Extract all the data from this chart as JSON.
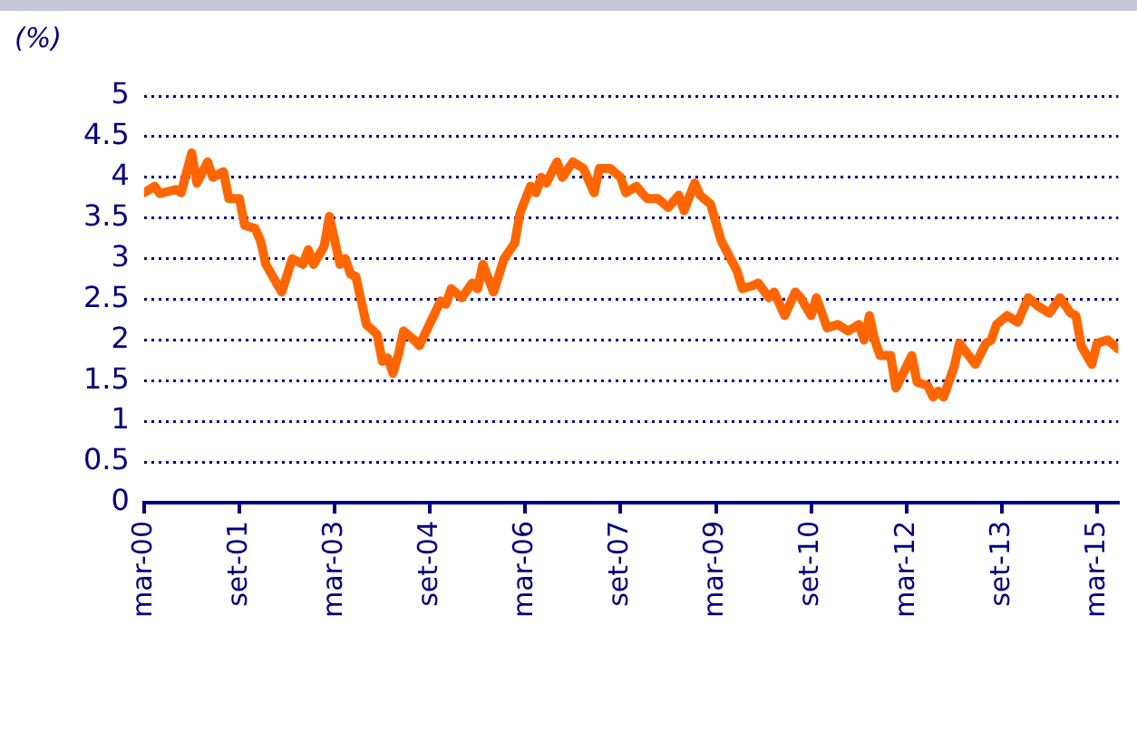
{
  "chart_data": {
    "type": "line",
    "ylabel": "(%)",
    "x": [
      "2000-03",
      "2000-05",
      "2000-06",
      "2000-09",
      "2000-10",
      "2000-12",
      "2001-01",
      "2001-03",
      "2001-04",
      "2001-06",
      "2001-07",
      "2001-09",
      "2001-10",
      "2001-12",
      "2002-01",
      "2002-02",
      "2002-05",
      "2002-07",
      "2002-09",
      "2002-10",
      "2002-11",
      "2003-01",
      "2003-02",
      "2003-04",
      "2003-05",
      "2003-06",
      "2003-07",
      "2003-09",
      "2003-11",
      "2003-12",
      "2004-01",
      "2004-02",
      "2004-03",
      "2004-04",
      "2004-06",
      "2004-07",
      "2004-11",
      "2004-12",
      "2005-01",
      "2005-03",
      "2005-05",
      "2005-06",
      "2005-07",
      "2005-09",
      "2005-11",
      "2006-01",
      "2006-02",
      "2006-04",
      "2006-05",
      "2006-06",
      "2006-07",
      "2006-09",
      "2006-10",
      "2006-12",
      "2007-02",
      "2007-04",
      "2007-05",
      "2007-07",
      "2007-09",
      "2007-10",
      "2007-12",
      "2008-01",
      "2008-02",
      "2008-04",
      "2008-06",
      "2008-08",
      "2008-09",
      "2008-11",
      "2008-12",
      "2009-02",
      "2009-04",
      "2009-07",
      "2009-08",
      "2009-10",
      "2009-11",
      "2010-01",
      "2010-02",
      "2010-04",
      "2010-06",
      "2010-07",
      "2010-09",
      "2010-10",
      "2010-12",
      "2011-02",
      "2011-04",
      "2011-06",
      "2011-07",
      "2011-08",
      "2011-09",
      "2011-10",
      "2011-12",
      "2012-01",
      "2012-04",
      "2012-05",
      "2012-07",
      "2012-08",
      "2012-09",
      "2012-10",
      "2012-12",
      "2013-01",
      "2013-04",
      "2013-06",
      "2013-07",
      "2013-08",
      "2013-10",
      "2013-12",
      "2014-02",
      "2014-04",
      "2014-06",
      "2014-08",
      "2014-10",
      "2014-11",
      "2014-12",
      "2015-02",
      "2015-03",
      "2015-05",
      "2015-07"
    ],
    "series": [
      {
        "color": "#ff6600",
        "values": [
          3.81,
          3.89,
          3.8,
          3.85,
          3.81,
          4.3,
          3.93,
          4.19,
          4.0,
          4.07,
          3.74,
          3.74,
          3.41,
          3.37,
          3.22,
          2.93,
          2.59,
          3.0,
          2.93,
          3.11,
          2.93,
          3.15,
          3.52,
          2.93,
          3.0,
          2.81,
          2.78,
          2.19,
          2.07,
          1.74,
          1.78,
          1.59,
          1.81,
          2.11,
          2.0,
          1.93,
          2.48,
          2.44,
          2.63,
          2.52,
          2.7,
          2.63,
          2.93,
          2.59,
          3.0,
          3.19,
          3.56,
          3.89,
          3.81,
          4.0,
          3.93,
          4.19,
          4.0,
          4.19,
          4.11,
          3.81,
          4.11,
          4.11,
          4.0,
          3.81,
          3.89,
          3.81,
          3.74,
          3.74,
          3.63,
          3.78,
          3.59,
          3.93,
          3.78,
          3.67,
          3.22,
          2.85,
          2.63,
          2.67,
          2.7,
          2.52,
          2.59,
          2.3,
          2.59,
          2.52,
          2.3,
          2.52,
          2.15,
          2.19,
          2.11,
          2.19,
          2.0,
          2.3,
          2.0,
          1.81,
          1.81,
          1.41,
          1.81,
          1.48,
          1.44,
          1.3,
          1.37,
          1.3,
          1.67,
          1.96,
          1.7,
          1.96,
          2.0,
          2.19,
          2.3,
          2.22,
          2.52,
          2.41,
          2.33,
          2.52,
          2.33,
          2.3,
          1.93,
          1.7,
          1.96,
          2.0,
          1.89
        ]
      }
    ],
    "xlim": [
      "2000-03",
      "2015-07"
    ],
    "xticks": [
      {
        "value": "2000-03",
        "label": "mar-00"
      },
      {
        "value": "2001-09",
        "label": "set-01"
      },
      {
        "value": "2003-03",
        "label": "mar-03"
      },
      {
        "value": "2004-09",
        "label": "set-04"
      },
      {
        "value": "2006-03",
        "label": "mar-06"
      },
      {
        "value": "2007-09",
        "label": "set-07"
      },
      {
        "value": "2009-03",
        "label": "mar-09"
      },
      {
        "value": "2010-09",
        "label": "set-10"
      },
      {
        "value": "2012-03",
        "label": "mar-12"
      },
      {
        "value": "2013-09",
        "label": "set-13"
      },
      {
        "value": "2015-03",
        "label": "mar-15"
      }
    ],
    "ylim": [
      0,
      5
    ],
    "yticks": [
      0,
      0.5,
      1,
      1.5,
      2,
      2.5,
      3,
      3.5,
      4,
      4.5,
      5
    ],
    "grid": "y",
    "legend": false,
    "marker": "none",
    "line_style": "solid"
  }
}
